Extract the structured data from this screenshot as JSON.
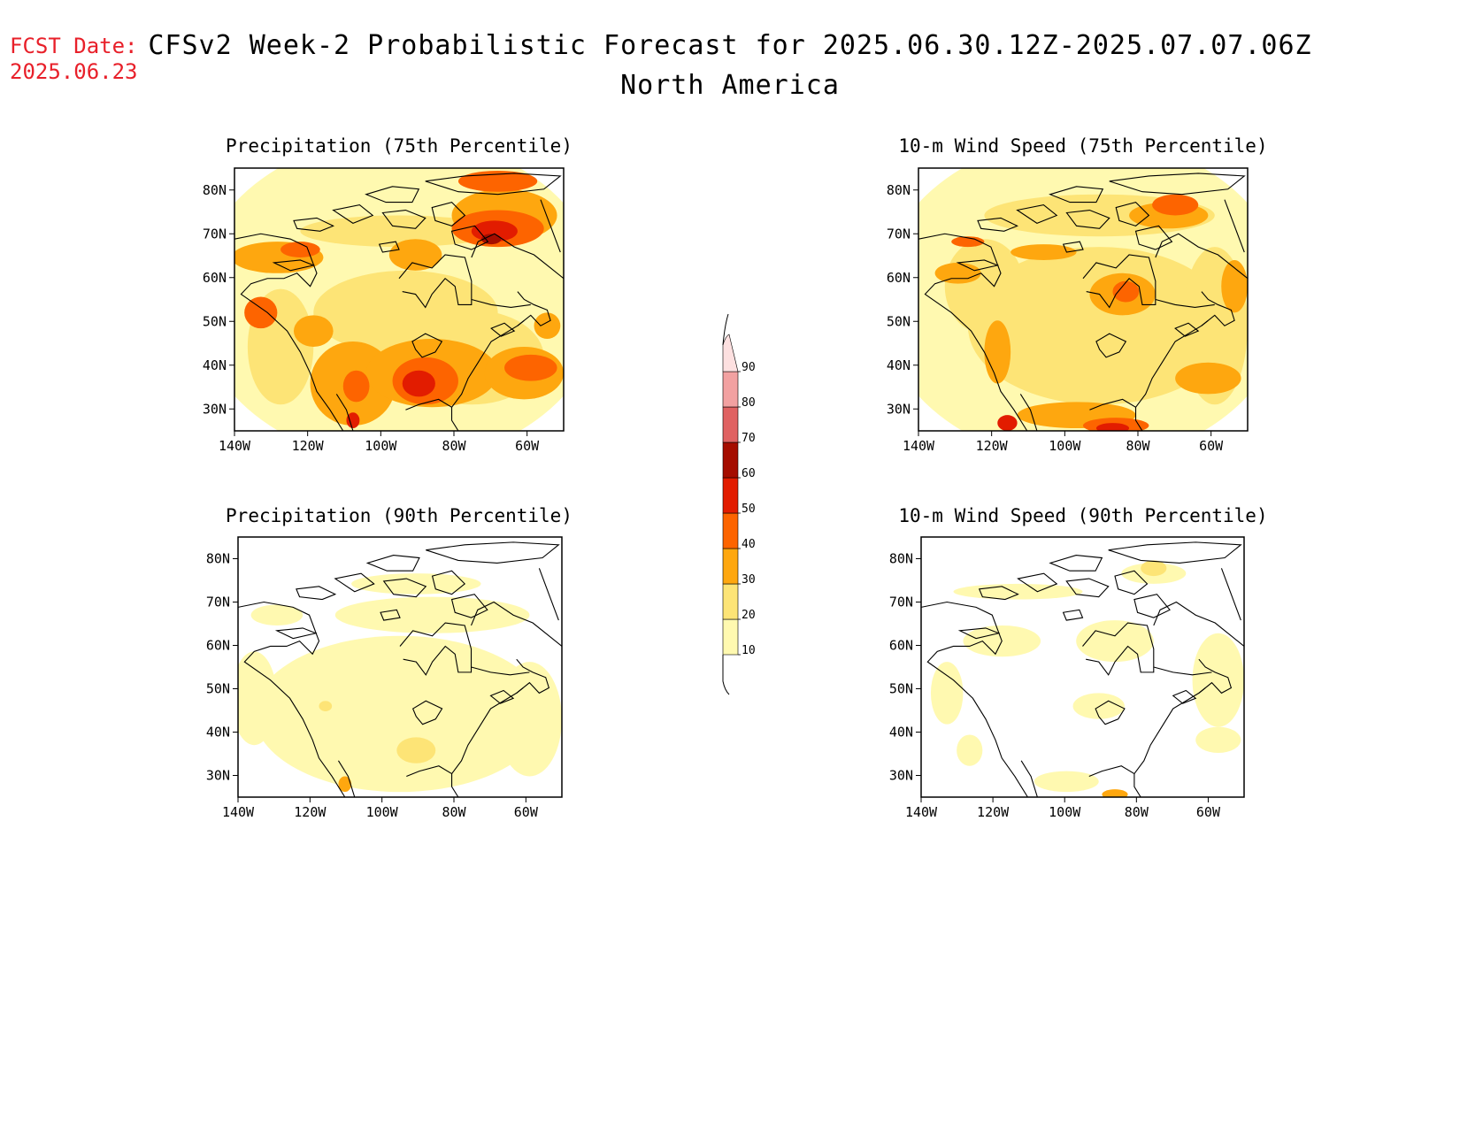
{
  "header": {
    "fcst_label": "FCST Date:",
    "fcst_date": "2025.06.23",
    "title": "CFSv2 Week-2 Probabilistic Forecast for 2025.06.30.12Z-2025.07.07.06Z",
    "subtitle": "North America"
  },
  "axes": {
    "lon_labels": [
      "140W",
      "120W",
      "100W",
      "80W",
      "60W"
    ],
    "lat_labels": [
      "30N",
      "40N",
      "50N",
      "60N",
      "70N",
      "80N"
    ],
    "lon_values": [
      -140,
      -120,
      -100,
      -80,
      -60
    ],
    "lat_values": [
      30,
      40,
      50,
      60,
      70,
      80
    ]
  },
  "colorbar": {
    "levels": [
      "10",
      "20",
      "30",
      "40",
      "50",
      "60",
      "70",
      "80",
      "90"
    ],
    "colors": [
      "#fff9b0",
      "#fde476",
      "#fea70f",
      "#fd6400",
      "#e21c00",
      "#a50d00",
      "#e06262",
      "#f2a1a1",
      "#fde0e0"
    ]
  },
  "panels": [
    {
      "id": "precip75",
      "title": "Precipitation (75th Percentile)"
    },
    {
      "id": "wind75",
      "title": "10-m Wind Speed (75th Percentile)"
    },
    {
      "id": "precip90",
      "title": "Precipitation (90th Percentile)"
    },
    {
      "id": "wind90",
      "title": "10-m Wind Speed (90th Percentile)"
    }
  ]
}
